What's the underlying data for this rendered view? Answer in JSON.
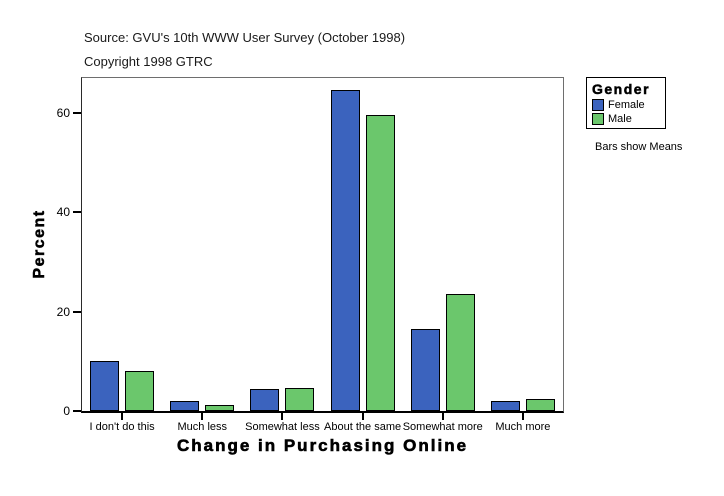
{
  "header": {
    "source": "Source: GVU's 10th WWW User Survey (October 1998)",
    "copyright": "Copyright 1998 GTRC"
  },
  "legend": {
    "title": "Gender",
    "entries": [
      {
        "label": "Female",
        "color": "#3B63BE"
      },
      {
        "label": "Male",
        "color": "#6BC76C"
      }
    ]
  },
  "note": "Bars show Means",
  "chart_data": {
    "type": "bar",
    "title": "",
    "xlabel": "Change in Purchasing Online",
    "ylabel": "Percent",
    "categories": [
      "I don't do this",
      "Much less",
      "Somewhat less",
      "About the same",
      "Somewhat more",
      "Much more"
    ],
    "series": [
      {
        "name": "Female",
        "color": "#3B63BE",
        "values": [
          10,
          2,
          4.5,
          64.5,
          16.5,
          2
        ]
      },
      {
        "name": "Male",
        "color": "#6BC76C",
        "values": [
          8,
          1.2,
          4.7,
          59.5,
          23.5,
          2.4
        ]
      }
    ],
    "ylim": [
      0,
      67
    ],
    "yticks": [
      0,
      20,
      40,
      60
    ],
    "grid": false,
    "legend_position": "right",
    "bar_outline": "#000000"
  }
}
